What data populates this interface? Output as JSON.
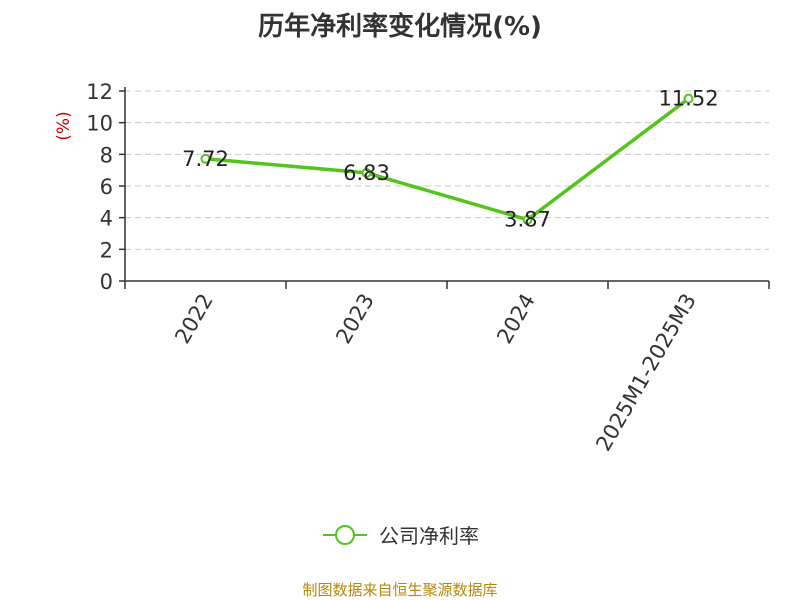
{
  "chart_data": {
    "type": "line",
    "title": "历年净利率变化情况(%)",
    "ylabel": "(%)",
    "categories": [
      "2022",
      "2023",
      "2024",
      "2025M1-2025M3"
    ],
    "series": [
      {
        "name": "公司净利率",
        "values": [
          7.72,
          6.83,
          3.87,
          11.52
        ],
        "labels": [
          "7.72",
          "6.83",
          "3.87",
          "11.52"
        ]
      }
    ],
    "ylim": [
      0,
      12
    ],
    "yticks": [
      0,
      2,
      4,
      6,
      8,
      10,
      12
    ],
    "grid": true,
    "legend_position": "bottom",
    "colors": {
      "line": "#52c41a",
      "ylabel": "#cc0000",
      "source": "#b8860b"
    }
  },
  "source_note": "制图数据来自恒生聚源数据库"
}
